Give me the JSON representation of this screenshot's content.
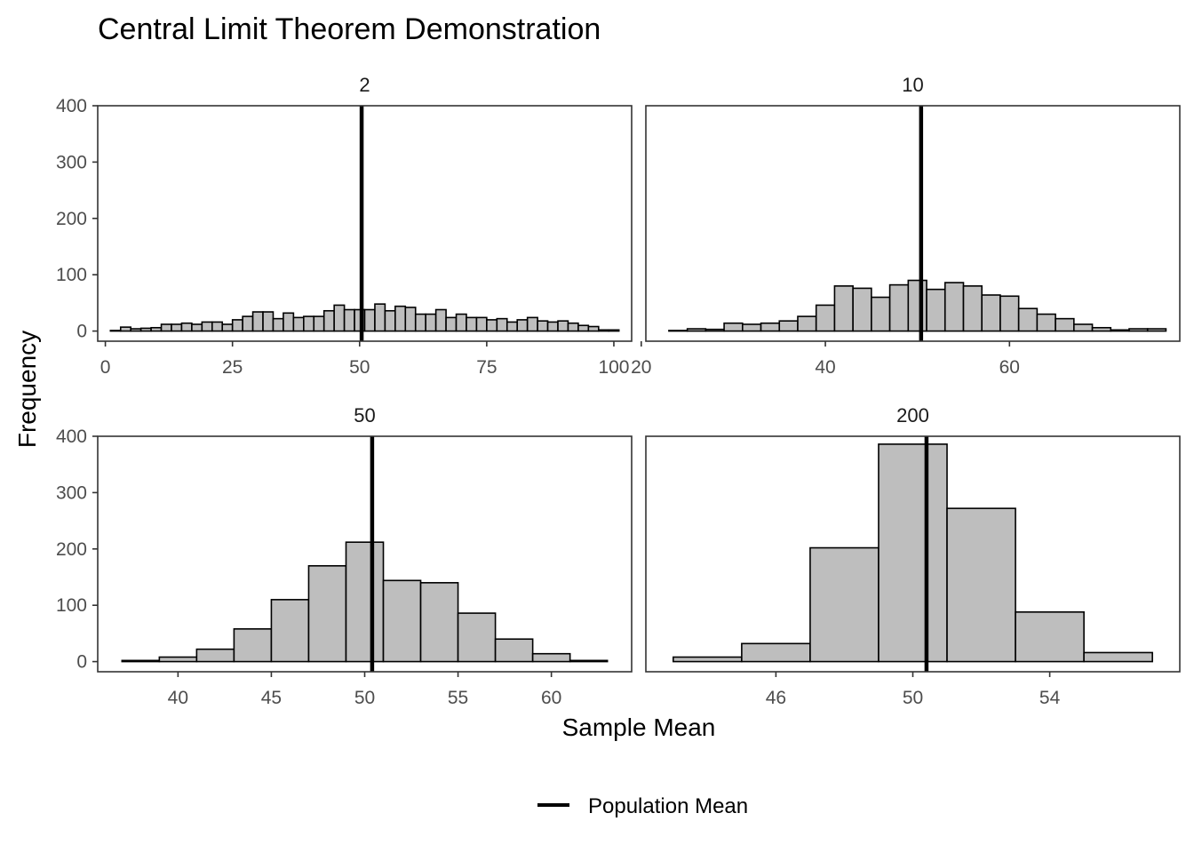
{
  "chart_data": {
    "type": "histogram",
    "title": "Central Limit Theorem Demonstration",
    "xlabel": "Sample Mean",
    "ylabel": "Frequency",
    "population_mean": 50.4,
    "colors": {
      "bar_fill": "#bebebe",
      "bar_stroke": "#000000",
      "mean_line": "#000000",
      "panel_border": "#333333"
    },
    "legend": {
      "label": "Population Mean",
      "position": "bottom"
    },
    "ylim": [
      0,
      400
    ],
    "yticks": [
      0,
      100,
      200,
      300,
      400
    ],
    "panels": [
      {
        "label": "2",
        "xlim": [
          -1.5,
          103.5
        ],
        "xticks": [
          0,
          25,
          50,
          75,
          100
        ],
        "bin_start": 1,
        "bin_width": 2,
        "values": [
          1,
          7,
          4,
          5,
          6,
          12,
          12,
          14,
          12,
          16,
          16,
          12,
          20,
          26,
          34,
          34,
          22,
          32,
          24,
          26,
          26,
          36,
          46,
          38,
          38,
          38,
          48,
          36,
          44,
          42,
          30,
          30,
          38,
          24,
          30,
          24,
          24,
          20,
          22,
          16,
          20,
          24,
          18,
          16,
          18,
          14,
          10,
          8,
          2,
          2
        ]
      },
      {
        "label": "10",
        "xlim": [
          20.5,
          78.5
        ],
        "xticks": [
          20,
          40,
          60
        ],
        "bin_start": 21,
        "bin_width": 2,
        "values": [
          0,
          1,
          4,
          3,
          14,
          12,
          14,
          18,
          26,
          46,
          80,
          76,
          60,
          82,
          90,
          74,
          86,
          80,
          64,
          62,
          40,
          30,
          22,
          12,
          6,
          2,
          4,
          4
        ]
      },
      {
        "label": "50",
        "xlim": [
          35.7,
          64.3
        ],
        "xticks": [
          40,
          45,
          50,
          55,
          60
        ],
        "bin_start": 37,
        "bin_width": 2,
        "values": [
          2,
          8,
          22,
          58,
          110,
          170,
          212,
          144,
          140,
          86,
          40,
          14,
          2
        ]
      },
      {
        "label": "200",
        "xlim": [
          42.2,
          57.8
        ],
        "xticks": [
          46,
          50,
          54
        ],
        "bin_start": 43,
        "bin_width": 2,
        "values": [
          8,
          32,
          202,
          386,
          272,
          88,
          16
        ]
      }
    ]
  }
}
